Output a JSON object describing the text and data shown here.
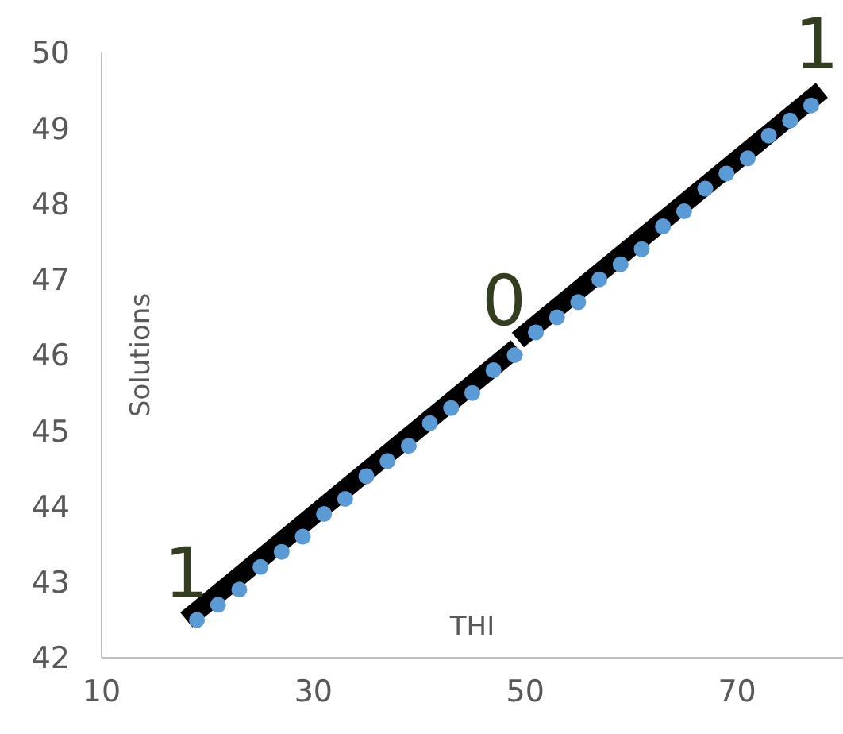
{
  "chart_data": {
    "type": "scatter",
    "xlabel": "THI",
    "ylabel": "Solutions",
    "xlim": [
      10,
      80
    ],
    "xticks": [
      10,
      30,
      50,
      70
    ],
    "ylim": [
      42,
      50
    ],
    "yticks": [
      42,
      43,
      44,
      45,
      46,
      47,
      48,
      49,
      50
    ],
    "series": [
      {
        "type": "scatter",
        "color": "#5b9bd5",
        "x": [
          19,
          21,
          23,
          25,
          27,
          29,
          31,
          33,
          35,
          37,
          39,
          41,
          43,
          45,
          47,
          49,
          51,
          53,
          55,
          57,
          59,
          61,
          63,
          65,
          67,
          69,
          71,
          73,
          75,
          77
        ],
        "values": [
          42.5,
          42.7,
          42.9,
          43.2,
          43.4,
          43.6,
          43.9,
          44.1,
          44.4,
          44.6,
          44.8,
          45.1,
          45.3,
          45.5,
          45.8,
          46.0,
          46.3,
          46.5,
          46.7,
          47.0,
          47.2,
          47.4,
          47.7,
          47.9,
          48.2,
          48.4,
          48.6,
          48.9,
          49.1,
          49.3
        ]
      },
      {
        "type": "line",
        "color": "#000000",
        "x": [
          18,
          49.2
        ],
        "values": [
          42.5,
          46.1
        ]
      },
      {
        "type": "line",
        "color": "#000000",
        "x": [
          49.3,
          78
        ],
        "values": [
          46.2,
          49.5
        ]
      }
    ],
    "annotations": [
      {
        "text": "1",
        "x": 18,
        "y": 42.5
      },
      {
        "text": "0",
        "x": 48,
        "y": 46.1
      },
      {
        "text": "1",
        "x": 77.5,
        "y": 49.5
      }
    ]
  }
}
